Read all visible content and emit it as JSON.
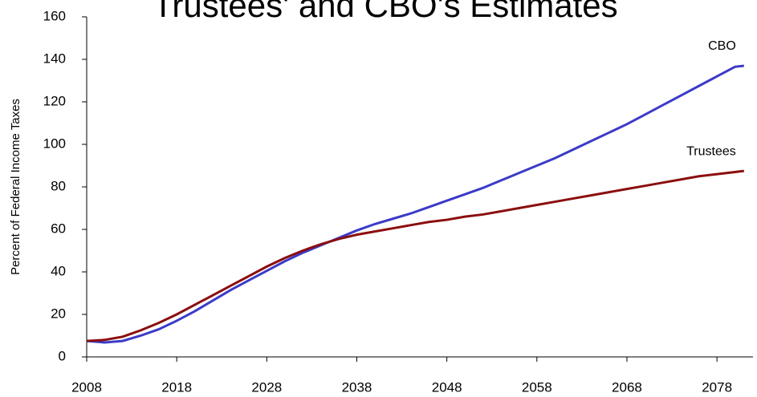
{
  "chart_data": {
    "type": "line",
    "title": "Trustees' and CBO's Estimates",
    "ylabel": "Percent of Federal Income Taxes",
    "x": [
      2008,
      2010,
      2012,
      2014,
      2016,
      2018,
      2020,
      2022,
      2024,
      2026,
      2028,
      2030,
      2032,
      2034,
      2036,
      2038,
      2040,
      2042,
      2044,
      2046,
      2048,
      2050,
      2052,
      2054,
      2056,
      2058,
      2060,
      2062,
      2064,
      2066,
      2068,
      2070,
      2072,
      2074,
      2076,
      2078,
      2080,
      2081
    ],
    "series": [
      {
        "name": "CBO",
        "color": "#3b3bc8",
        "values": [
          7.5,
          6.8,
          7.5,
          10,
          13,
          17,
          21.5,
          26.5,
          31.5,
          36,
          40.5,
          45,
          49,
          52.5,
          56,
          59.5,
          62.5,
          65,
          67.5,
          70.5,
          73.5,
          76.5,
          79.5,
          83,
          86.5,
          90,
          93.5,
          97.5,
          101.5,
          105.5,
          109.5,
          114,
          118.5,
          123,
          127.5,
          132,
          136.5,
          137
        ]
      },
      {
        "name": "Trustees",
        "color": "#8b0e0e",
        "values": [
          7.5,
          8,
          9.5,
          12.5,
          16,
          20,
          24.5,
          29,
          33.5,
          38,
          42.5,
          46.5,
          50,
          53,
          55.5,
          57.5,
          59,
          60.5,
          62,
          63.5,
          64.5,
          66,
          67,
          68.5,
          70,
          71.5,
          73,
          74.5,
          76,
          77.5,
          79,
          80.5,
          82,
          83.5,
          85,
          86,
          87,
          87.5
        ]
      }
    ],
    "xlim": [
      2008,
      2082
    ],
    "xticks": [
      2008,
      2018,
      2028,
      2038,
      2048,
      2058,
      2068,
      2078
    ],
    "ylim": [
      0,
      160
    ],
    "yticks": [
      0,
      20,
      40,
      60,
      80,
      100,
      120,
      140,
      160
    ],
    "grid": false
  }
}
